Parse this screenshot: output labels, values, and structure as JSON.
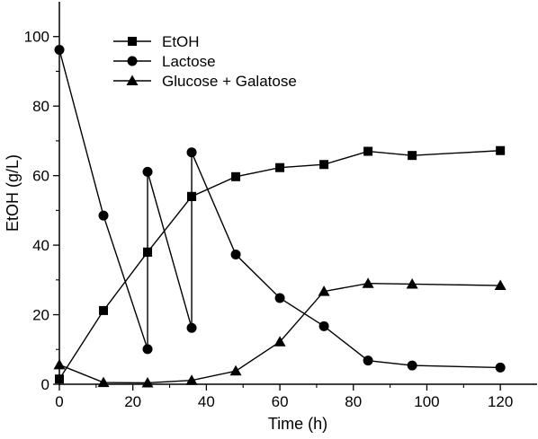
{
  "chart_data": {
    "type": "line",
    "xlabel": "Time (h)",
    "ylabel": "EtOH (g/L)",
    "xlim": [
      0,
      130
    ],
    "ylim": [
      0,
      110
    ],
    "xticks": [
      0,
      20,
      40,
      60,
      80,
      100,
      120
    ],
    "yticks": [
      0,
      20,
      40,
      60,
      80,
      100
    ],
    "grid": false,
    "legend_position": "top-left",
    "series": [
      {
        "name": "EtOH",
        "marker": "square",
        "x": [
          0,
          12,
          24,
          24,
          36,
          36,
          48,
          60,
          72,
          84,
          96,
          120
        ],
        "y": [
          1.5,
          21.2,
          38.0,
          38.0,
          54.0,
          54.0,
          59.7,
          62.3,
          63.2,
          67.0,
          65.8,
          67.2
        ]
      },
      {
        "name": "Lactose",
        "marker": "circle",
        "x": [
          0,
          12,
          24,
          24,
          36,
          36,
          48,
          60,
          72,
          84,
          96,
          120
        ],
        "y": [
          96.2,
          48.5,
          10.1,
          61.1,
          16.2,
          66.7,
          37.3,
          24.8,
          16.7,
          6.8,
          5.4,
          4.8
        ]
      },
      {
        "name": "Glucose + Galatose",
        "marker": "triangle",
        "x": [
          0,
          12,
          24,
          36,
          48,
          60,
          72,
          84,
          96,
          120
        ],
        "y": [
          5.6,
          0.5,
          0.4,
          1.1,
          3.8,
          12.2,
          26.7,
          29.0,
          28.8,
          28.4
        ]
      }
    ]
  }
}
